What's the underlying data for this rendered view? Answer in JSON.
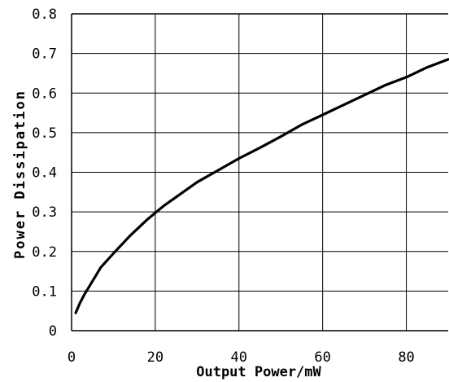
{
  "chart_data": {
    "type": "line",
    "title": "",
    "xlabel": "Output Power/mW",
    "ylabel": "Power Dissipation",
    "xlim": [
      0,
      90
    ],
    "ylim": [
      0,
      0.8
    ],
    "grid": true,
    "x_ticks": [
      "0",
      "20",
      "40",
      "60",
      "80"
    ],
    "y_ticks": [
      "0",
      "0.1",
      "0.2",
      "0.3",
      "0.4",
      "0.5",
      "0.6",
      "0.7",
      "0.8"
    ],
    "line_color": "#000000",
    "series": [
      {
        "x": [
          1,
          2,
          3,
          5,
          7,
          10,
          14,
          18,
          22,
          26,
          30,
          35,
          40,
          45,
          50,
          55,
          60,
          65,
          70,
          75,
          80,
          85,
          90
        ],
        "values": [
          0.045,
          0.07,
          0.09,
          0.125,
          0.16,
          0.195,
          0.24,
          0.28,
          0.315,
          0.345,
          0.375,
          0.405,
          0.435,
          0.462,
          0.49,
          0.52,
          0.545,
          0.57,
          0.595,
          0.62,
          0.64,
          0.665,
          0.685
        ]
      }
    ]
  }
}
